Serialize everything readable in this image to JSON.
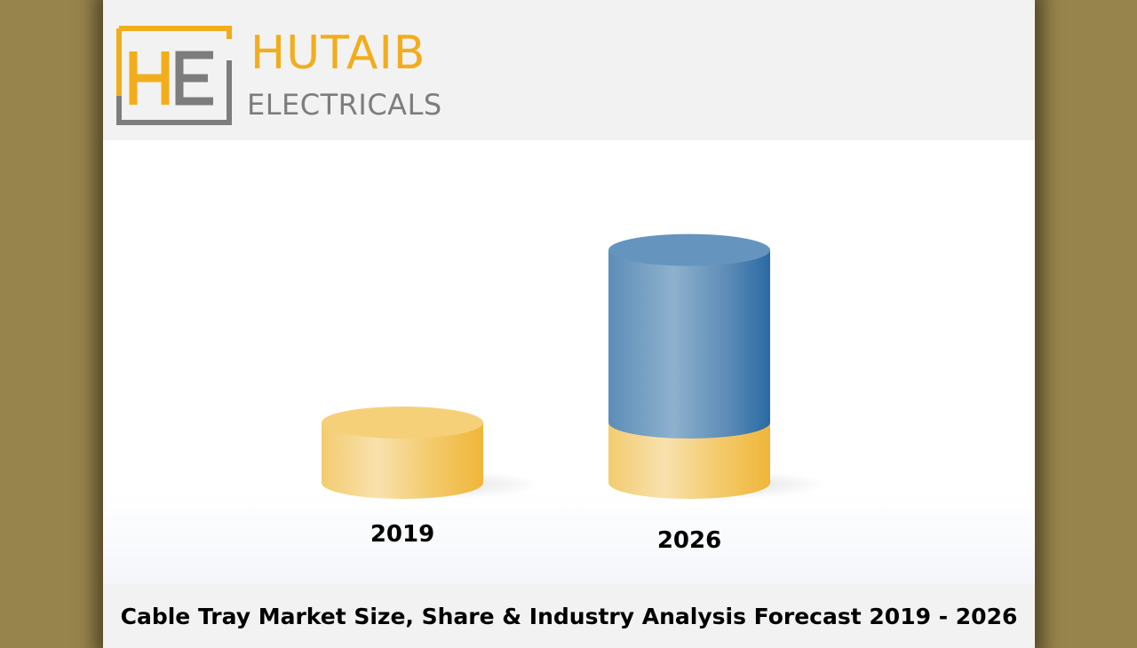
{
  "brand": {
    "name_line1": "HUTAIB",
    "name_line2": "ELECTRICALS",
    "logo_letters": "HE",
    "colors": {
      "gold": "#f2ad1c",
      "gray": "#7d7d7d"
    }
  },
  "chart_data": {
    "type": "bar",
    "categories": [
      "2019",
      "2026"
    ],
    "values": [
      1,
      3.7
    ],
    "colors": {
      "base": "#f3c35b",
      "growth": "#4b86b4"
    }
  },
  "footer": {
    "title": "Cable Tray Market Size, Share & Industry Analysis Forecast 2019 - 2026"
  }
}
